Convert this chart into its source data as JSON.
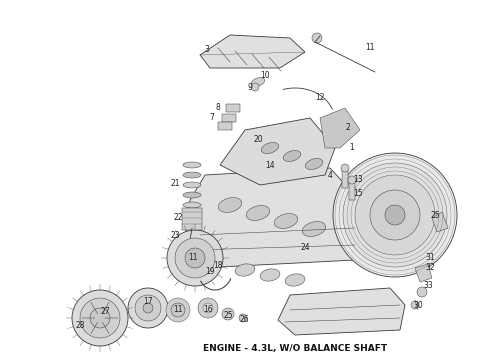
{
  "title": "ENGINE - 4.3L, W/O BALANCE SHAFT",
  "title_fontsize": 6.5,
  "title_fontweight": "bold",
  "background_color": "#ffffff",
  "fig_width": 4.9,
  "fig_height": 3.6,
  "dpi": 100,
  "lc": "#3a3a3a",
  "lc2": "#555555",
  "fc_light": "#e8e8e8",
  "fc_mid": "#d0d0d0",
  "fc_dark": "#b8b8b8",
  "lw_main": 0.6,
  "lw_thin": 0.35,
  "lw_thick": 0.9
}
